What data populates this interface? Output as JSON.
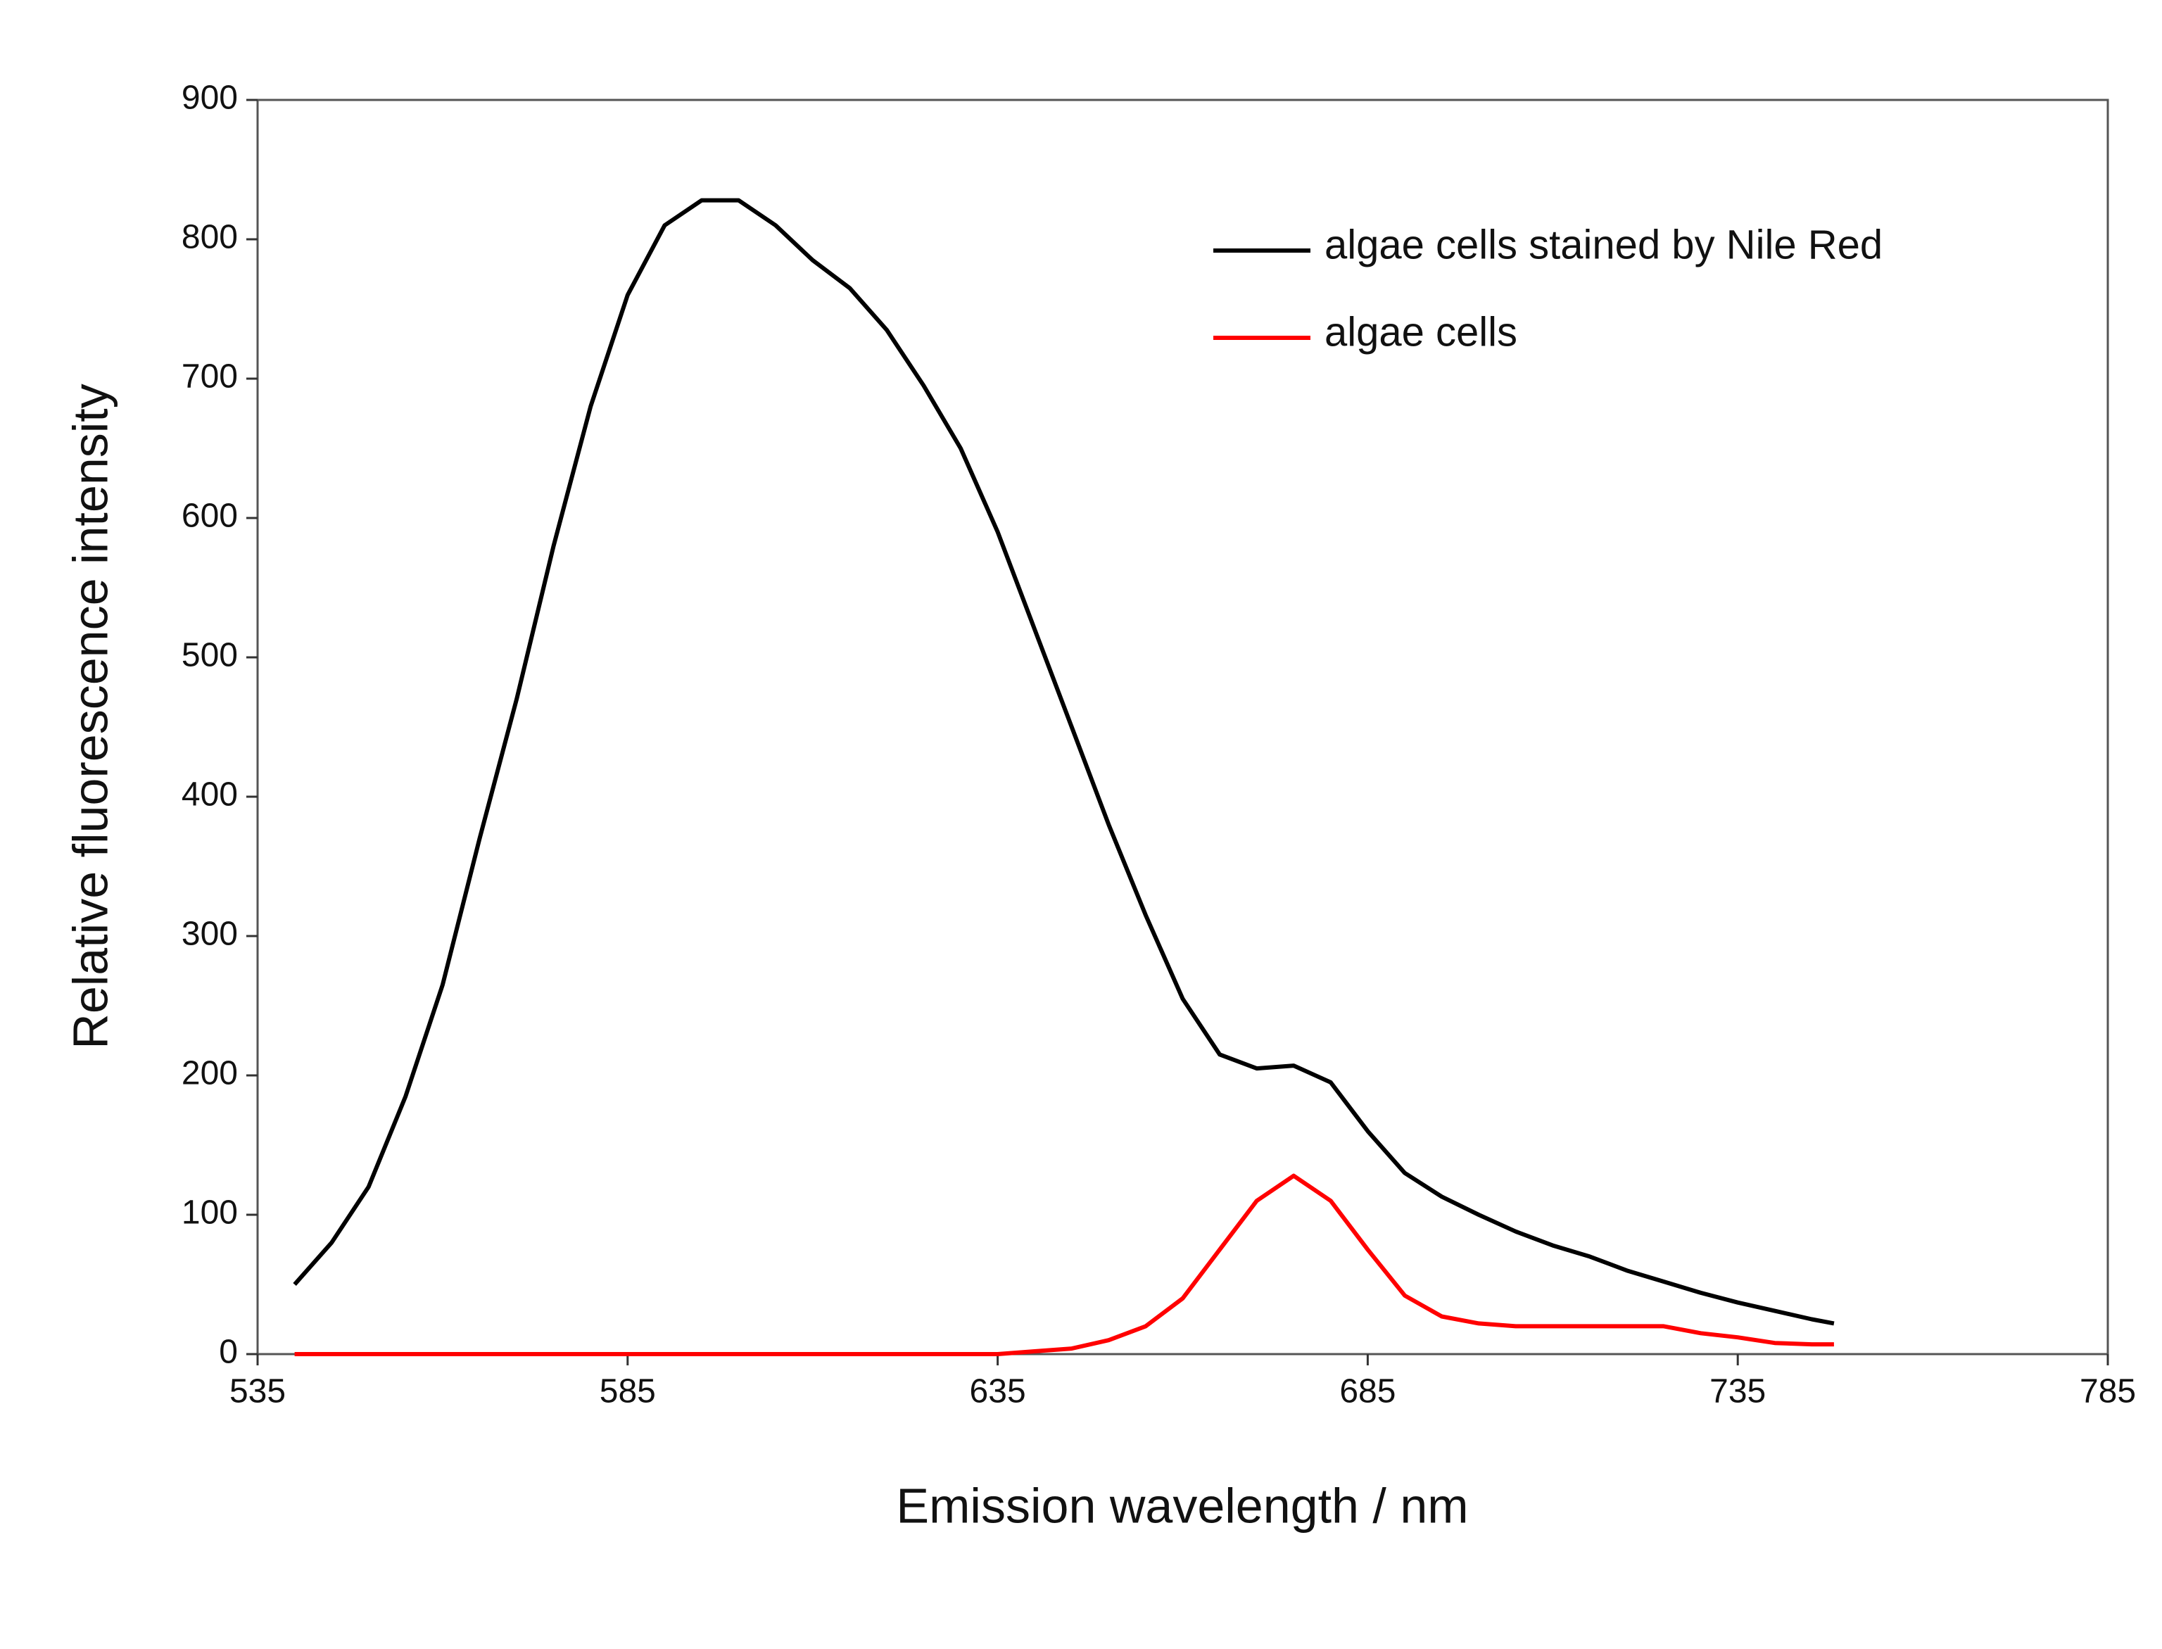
{
  "chart_data": {
    "type": "line",
    "xlabel": "Emission wavelength / nm",
    "ylabel": "Relative fluorescence intensity",
    "x": [
      540,
      545,
      550,
      555,
      560,
      565,
      570,
      575,
      580,
      585,
      590,
      595,
      600,
      605,
      610,
      615,
      620,
      625,
      630,
      635,
      640,
      645,
      650,
      655,
      660,
      665,
      670,
      675,
      680,
      685,
      690,
      695,
      700,
      705,
      710,
      715,
      720,
      725,
      730,
      735,
      740,
      745,
      748
    ],
    "series": [
      {
        "name": "algae cells stained by Nile Red",
        "color": "#000000",
        "values": [
          50,
          80,
          120,
          185,
          265,
          370,
          470,
          580,
          680,
          760,
          810,
          828,
          828,
          810,
          785,
          765,
          735,
          695,
          650,
          590,
          520,
          450,
          380,
          315,
          255,
          215,
          205,
          207,
          195,
          160,
          130,
          113,
          100,
          88,
          78,
          70,
          60,
          52,
          44,
          37,
          31,
          25,
          22
        ]
      },
      {
        "name": "algae cells",
        "color": "#ff0000",
        "values": [
          0,
          0,
          0,
          0,
          0,
          0,
          0,
          0,
          0,
          0,
          0,
          0,
          0,
          0,
          0,
          0,
          0,
          0,
          0,
          0,
          2,
          4,
          10,
          20,
          40,
          75,
          110,
          128,
          110,
          75,
          42,
          27,
          22,
          20,
          20,
          20,
          20,
          20,
          15,
          12,
          8,
          7,
          7
        ]
      }
    ],
    "xlim": [
      535,
      785
    ],
    "xticks": [
      535,
      585,
      635,
      685,
      735,
      785
    ],
    "ylim": [
      0,
      900
    ],
    "yticks": [
      0,
      100,
      200,
      300,
      400,
      500,
      600,
      700,
      800,
      900
    ],
    "legend": "upper right"
  }
}
